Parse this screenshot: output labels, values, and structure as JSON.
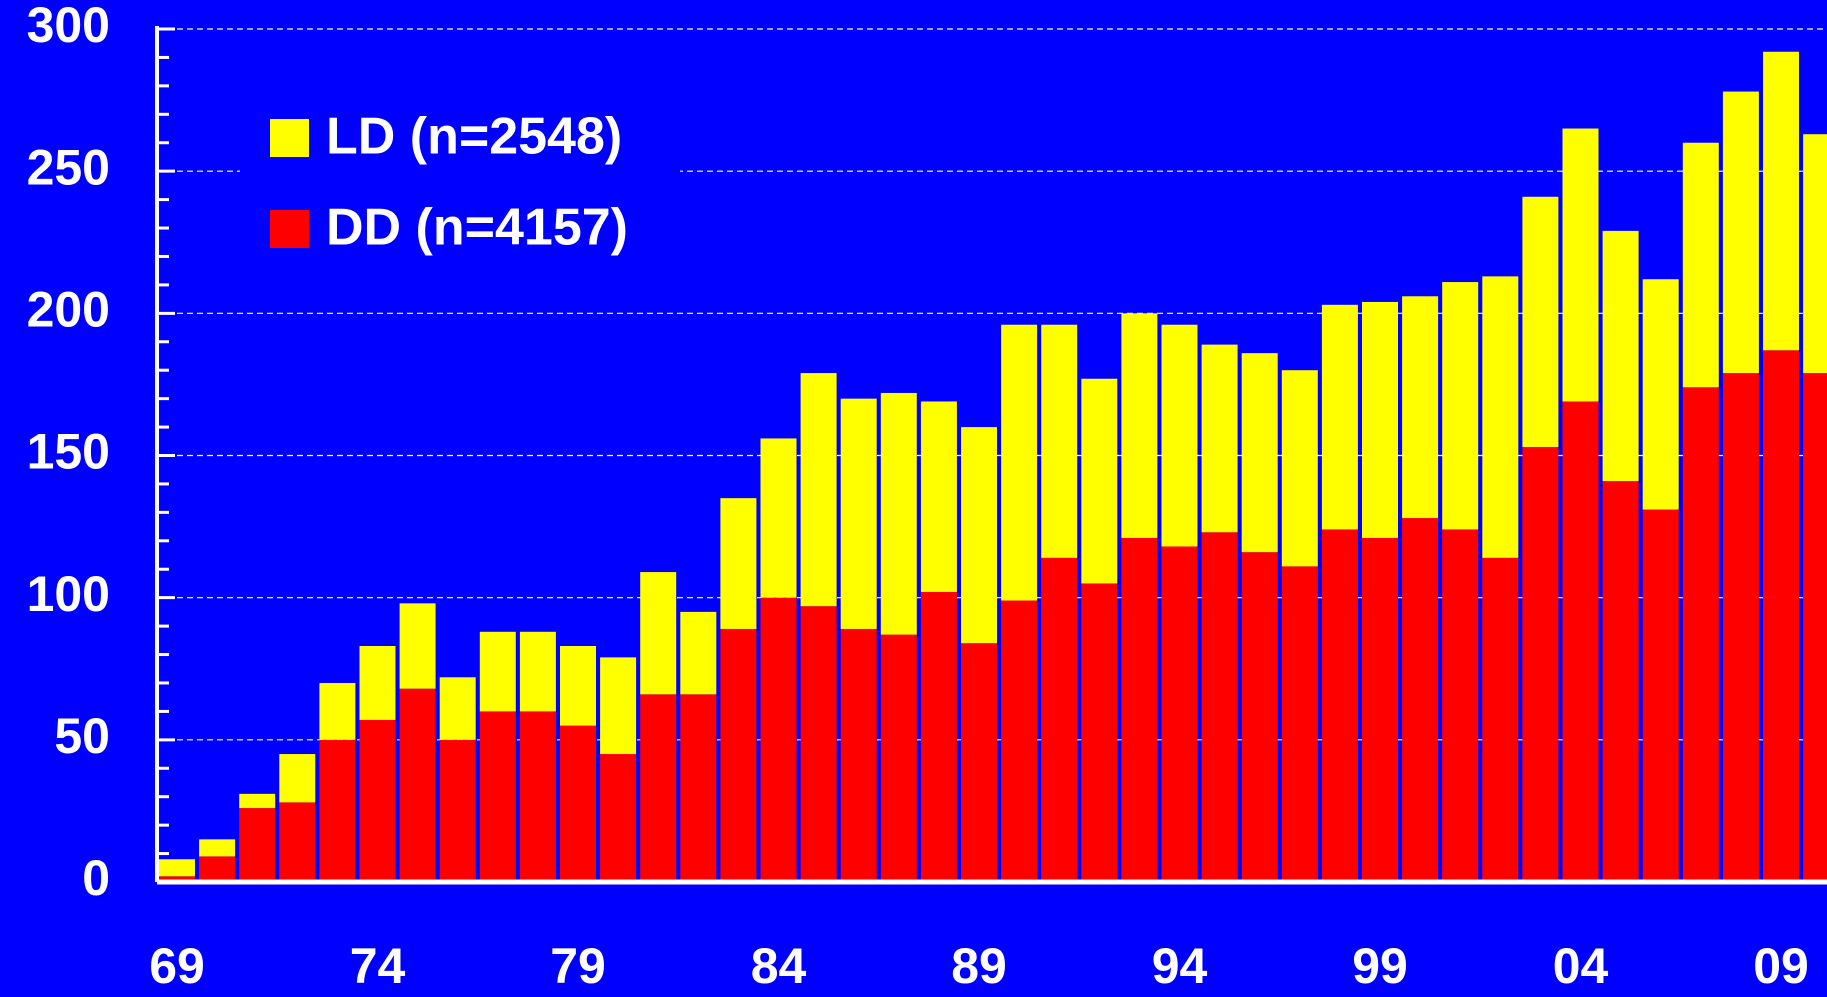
{
  "chart_data": {
    "type": "stacked_bar",
    "categories": [
      "69",
      null,
      null,
      null,
      null,
      "74",
      null,
      null,
      null,
      null,
      "79",
      null,
      null,
      null,
      null,
      "84",
      null,
      null,
      null,
      null,
      "89",
      null,
      null,
      null,
      null,
      "94",
      null,
      null,
      null,
      null,
      "99",
      null,
      null,
      null,
      null,
      "04",
      null,
      null,
      null,
      null,
      "09",
      null
    ],
    "series": [
      {
        "name": "DD (n=4157)",
        "color": "#ff0000",
        "values": [
          2,
          9,
          26,
          28,
          50,
          57,
          68,
          50,
          60,
          60,
          55,
          45,
          66,
          66,
          89,
          100,
          97,
          89,
          87,
          102,
          84,
          99,
          114,
          105,
          121,
          118,
          123,
          116,
          111,
          124,
          121,
          128,
          124,
          114,
          153,
          169,
          141,
          131,
          174,
          179,
          187,
          179
        ]
      },
      {
        "name": "LD (n=2548)",
        "color": "#ffff00",
        "values": [
          6,
          6,
          5,
          17,
          20,
          26,
          30,
          22,
          28,
          28,
          28,
          34,
          43,
          29,
          46,
          56,
          82,
          81,
          85,
          67,
          76,
          97,
          82,
          72,
          79,
          78,
          66,
          70,
          69,
          79,
          83,
          78,
          87,
          99,
          88,
          96,
          88,
          81,
          86,
          99,
          105,
          84
        ]
      }
    ],
    "ylim": [
      0,
      300
    ],
    "yticks": [
      0,
      50,
      100,
      150,
      200,
      250,
      300
    ],
    "grid": true
  }
}
